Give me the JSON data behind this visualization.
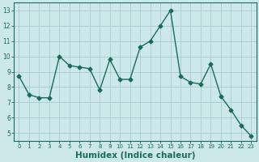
{
  "x": [
    0,
    1,
    2,
    3,
    4,
    5,
    6,
    7,
    8,
    9,
    10,
    11,
    12,
    13,
    14,
    15,
    16,
    17,
    18,
    19,
    20,
    21,
    22,
    23
  ],
  "y": [
    8.7,
    7.5,
    7.3,
    7.3,
    10.0,
    9.4,
    9.3,
    9.2,
    7.8,
    9.8,
    8.5,
    8.5,
    10.6,
    11.0,
    12.0,
    13.0,
    8.7,
    8.3,
    8.2,
    9.5,
    7.4,
    6.5,
    5.5,
    4.8
  ],
  "line_color": "#1a6b5a",
  "marker": "D",
  "markersize": 2.5,
  "linewidth": 1.0,
  "bg_color": "#cce8e8",
  "grid_color": "#aacccc",
  "xlabel": "Humidex (Indice chaleur)",
  "xlabel_fontsize": 7.5,
  "ylabel_ticks": [
    5,
    6,
    7,
    8,
    9,
    10,
    11,
    12,
    13
  ],
  "xtick_labels": [
    "0",
    "1",
    "2",
    "3",
    "4",
    "5",
    "6",
    "7",
    "8",
    "9",
    "10",
    "11",
    "12",
    "13",
    "14",
    "15",
    "16",
    "17",
    "18",
    "19",
    "20",
    "21",
    "22",
    "23"
  ],
  "ylim": [
    4.5,
    13.5
  ],
  "xlim": [
    -0.5,
    23.5
  ]
}
